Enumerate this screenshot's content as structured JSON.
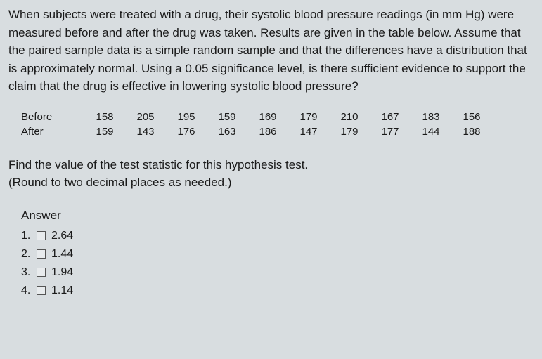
{
  "question": "When subjects were treated with a drug, their systolic blood pressure readings (in mm Hg) were measured before and after the drug was taken. Results are given in the table below. Assume that the paired sample data is a simple random sample and that the differences have a distribution that is approximately normal. Using a 0.05 significance level, is there sufficient evidence to support the claim that the drug is effective in lowering systolic blood pressure?",
  "table": {
    "row_labels": [
      "Before",
      "After"
    ],
    "before": [
      "158",
      "205",
      "195",
      "159",
      "169",
      "179",
      "210",
      "167",
      "183",
      "156"
    ],
    "after": [
      "159",
      "143",
      "176",
      "163",
      "186",
      "147",
      "179",
      "177",
      "144",
      "188"
    ]
  },
  "instruction_line1": "Find the value of the test statistic for this hypothesis test.",
  "instruction_line2": "(Round to two decimal places as needed.)",
  "answer_heading": "Answer",
  "options": [
    {
      "num": "1.",
      "value": "2.64"
    },
    {
      "num": "2.",
      "value": "1.44"
    },
    {
      "num": "3.",
      "value": "1.94"
    },
    {
      "num": "4.",
      "value": "1.14"
    }
  ],
  "colors": {
    "background": "#d8dde0",
    "text": "#1a1a1a",
    "checkbox_border": "#555"
  },
  "font_size_body": 17,
  "font_size_table": 15
}
